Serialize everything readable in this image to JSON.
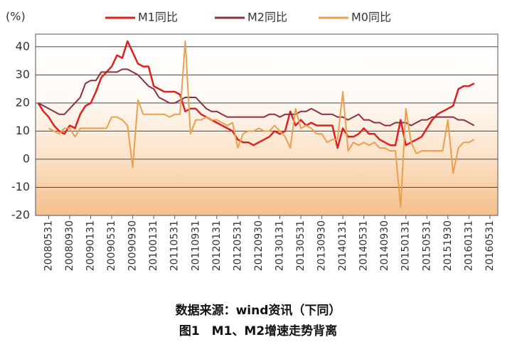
{
  "chart_data": {
    "type": "line",
    "y_label": "(%)",
    "source": "数据来源：wind资讯（下同）",
    "title": "图1　M1、M2增速走势背离",
    "categories": [
      null,
      null,
      "20080531",
      null,
      null,
      null,
      "20080930",
      null,
      null,
      null,
      "20090131",
      null,
      null,
      null,
      "20090531",
      null,
      null,
      null,
      "20090930",
      null,
      null,
      null,
      "20100131",
      null,
      null,
      null,
      "20110531",
      null,
      null,
      null,
      "20110931",
      null,
      null,
      null,
      "20120131",
      null,
      null,
      null,
      "20120531",
      null,
      null,
      null,
      "20120930",
      null,
      null,
      null,
      "20130131",
      null,
      null,
      null,
      "20130531",
      null,
      null,
      null,
      "20130930",
      null,
      null,
      null,
      "20140131",
      null,
      null,
      null,
      "20140531",
      null,
      null,
      null,
      "20140930",
      null,
      null,
      null,
      "20150131",
      null,
      null,
      null,
      "20150531",
      null,
      null,
      null,
      "20151930",
      null,
      null,
      null,
      "20160131",
      null,
      null,
      null,
      "20160531",
      null
    ],
    "series": [
      {
        "name": "M1同比",
        "color": "#e02020",
        "values": [
          20,
          17,
          15,
          12,
          10,
          9,
          12,
          11,
          16,
          19,
          20,
          24,
          29,
          31,
          33,
          37,
          36,
          42,
          38,
          34,
          33,
          33,
          26,
          25,
          24,
          24,
          24,
          23,
          17,
          18,
          18,
          16,
          15,
          14,
          13,
          12,
          11,
          10,
          7,
          6,
          6,
          5,
          6,
          7,
          8,
          10,
          9,
          10,
          17,
          12,
          14,
          12,
          13,
          12,
          12,
          12,
          12,
          4,
          11,
          8,
          8,
          9,
          11,
          9,
          9,
          7,
          6,
          5,
          5,
          14,
          5,
          6,
          7,
          8,
          11,
          14,
          16,
          17,
          18,
          19,
          25,
          26,
          26,
          27,
          null,
          null,
          null,
          null
        ]
      },
      {
        "name": "M2同比",
        "color": "#8b3040",
        "values": [
          20,
          19,
          18,
          17,
          16,
          16,
          18,
          20,
          22,
          27,
          28,
          28,
          31,
          31,
          31,
          31,
          32,
          32,
          31,
          30,
          28,
          26,
          25,
          22,
          21,
          20,
          20,
          21,
          22,
          22,
          22,
          20,
          18,
          17,
          17,
          16,
          15,
          15,
          15,
          15,
          15,
          15,
          15,
          15,
          16,
          16,
          15,
          16,
          16,
          16,
          17,
          17,
          18,
          17,
          16,
          16,
          16,
          15,
          15,
          14,
          15,
          16,
          14,
          14,
          13,
          13,
          12,
          12,
          13,
          13,
          13,
          12,
          13,
          14,
          14,
          15,
          15,
          15,
          15,
          15,
          14,
          14,
          13,
          12,
          null,
          null,
          null,
          null
        ]
      },
      {
        "name": "M0同比",
        "color": "#e8a050",
        "values": [
          null,
          null,
          11,
          10,
          9,
          11,
          11,
          8,
          11,
          11,
          11,
          11,
          11,
          11,
          15,
          15,
          14,
          12,
          -3,
          21,
          16,
          16,
          16,
          16,
          16,
          15,
          16,
          16,
          42,
          9,
          14,
          14,
          15,
          14,
          14,
          13,
          12,
          13,
          4,
          9,
          10,
          10,
          11,
          10,
          10,
          12,
          10,
          8,
          4,
          18,
          11,
          12,
          11,
          9,
          9,
          6,
          7,
          7,
          24,
          3,
          6,
          5,
          6,
          5,
          6,
          4,
          4,
          3,
          3,
          -17,
          18,
          6,
          2,
          3,
          3,
          3,
          3,
          3,
          14,
          -5,
          4,
          6,
          6,
          7,
          null,
          null,
          null,
          null
        ]
      }
    ],
    "ylim": [
      -20,
      44.5
    ],
    "yticks": [
      -20,
      -10,
      0,
      10,
      20,
      30,
      40
    ],
    "grid": true
  }
}
